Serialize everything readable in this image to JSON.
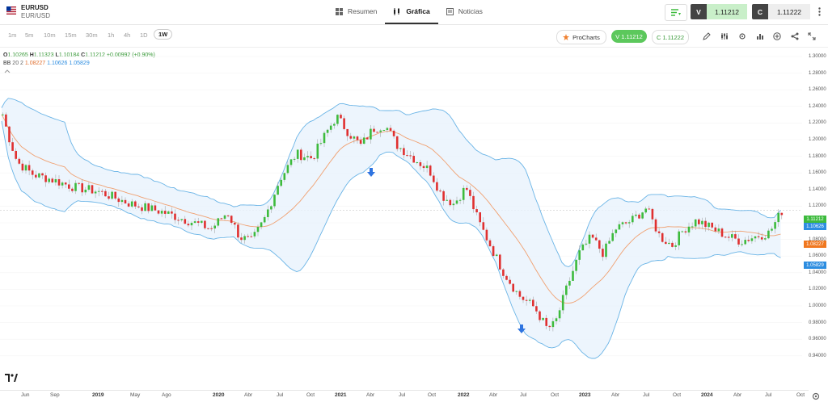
{
  "header": {
    "symbol": "EURUSD",
    "symbol_sub": "EUR/USD",
    "tabs": [
      {
        "label": "Resumen"
      },
      {
        "label": "Gráfica"
      },
      {
        "label": "Noticias"
      }
    ],
    "sell_label": "V",
    "sell_price": "1.11212",
    "buy_label": "C",
    "buy_price": "1.11222"
  },
  "timeframes": [
    "1m",
    "5m",
    "10m",
    "15m",
    "30m",
    "1h",
    "4h",
    "1D",
    "1W"
  ],
  "toolbar": {
    "prochart_label": "ProCharts",
    "sell_pill": "V 1.11212",
    "buy_pill": "C 1.11222"
  },
  "ohlc": {
    "o_label": "O",
    "o": "1.10265",
    "h_label": "H",
    "h": "1.11323",
    "l_label": "L",
    "l": "1.10184",
    "c_label": "C",
    "c": "1.11212",
    "change": "+0.00992 (+0.90%)"
  },
  "bb": {
    "label": "BB",
    "params": "20 2",
    "mid": "1.08227",
    "upper": "1.10626",
    "lower": "1.05829"
  },
  "y_axis": [
    "1.30000",
    "1.28000",
    "1.26000",
    "1.24000",
    "1.22000",
    "1.20000",
    "1.18000",
    "1.16000",
    "1.14000",
    "1.12000",
    "1.10000",
    "1.08000",
    "1.06000",
    "1.04000",
    "1.02000",
    "1.00000",
    "0.98000",
    "0.96000",
    "0.94000"
  ],
  "x_axis": [
    {
      "label": "Jun",
      "bold": false
    },
    {
      "label": "Sep",
      "bold": false
    },
    {
      "label": "2019",
      "bold": true
    },
    {
      "label": "May",
      "bold": false
    },
    {
      "label": "Ago",
      "bold": false
    },
    {
      "label": "2020",
      "bold": true
    },
    {
      "label": "Abr",
      "bold": false
    },
    {
      "label": "Jul",
      "bold": false
    },
    {
      "label": "Oct",
      "bold": false
    },
    {
      "label": "2021",
      "bold": true
    },
    {
      "label": "Abr",
      "bold": false
    },
    {
      "label": "Jul",
      "bold": false
    },
    {
      "label": "Oct",
      "bold": false
    },
    {
      "label": "2022",
      "bold": true
    },
    {
      "label": "Abr",
      "bold": false
    },
    {
      "label": "Jul",
      "bold": false
    },
    {
      "label": "Oct",
      "bold": false
    },
    {
      "label": "2023",
      "bold": true
    },
    {
      "label": "Abr",
      "bold": false
    },
    {
      "label": "Jul",
      "bold": false
    },
    {
      "label": "Oct",
      "bold": false
    },
    {
      "label": "2024",
      "bold": true
    },
    {
      "label": "Abr",
      "bold": false
    },
    {
      "label": "Jul",
      "bold": false
    },
    {
      "label": "Oct",
      "bold": false
    }
  ],
  "price_tags": {
    "price": "1.11212",
    "upper": "1.10626",
    "mid": "1.08227",
    "lower": "1.05829"
  },
  "colors": {
    "up": "#3dbb3d",
    "down": "#e03030",
    "band": "#6ab4e6",
    "mid": "#f0a070",
    "sell": "#8fd88f",
    "accent": "#2d8de0"
  },
  "chart_data": {
    "type": "candlestick",
    "instrument": "EURUSD",
    "timeframe": "1W",
    "ylim": [
      0.94,
      1.3
    ],
    "close_path_approx": [
      [
        0,
        1.235
      ],
      [
        8,
        1.205
      ],
      [
        20,
        1.17
      ],
      [
        40,
        1.155
      ],
      [
        60,
        1.15
      ],
      [
        90,
        1.14
      ],
      [
        120,
        1.135
      ],
      [
        160,
        1.12
      ],
      [
        200,
        1.11
      ],
      [
        230,
        1.1
      ],
      [
        260,
        1.09
      ],
      [
        280,
        1.11
      ],
      [
        295,
        1.08
      ],
      [
        310,
        1.075
      ],
      [
        325,
        1.1
      ],
      [
        345,
        1.15
      ],
      [
        365,
        1.18
      ],
      [
        385,
        1.175
      ],
      [
        405,
        1.21
      ],
      [
        415,
        1.225
      ],
      [
        430,
        1.205
      ],
      [
        445,
        1.19
      ],
      [
        460,
        1.21
      ],
      [
        475,
        1.215
      ],
      [
        490,
        1.19
      ],
      [
        510,
        1.175
      ],
      [
        530,
        1.16
      ],
      [
        545,
        1.13
      ],
      [
        560,
        1.12
      ],
      [
        575,
        1.14
      ],
      [
        590,
        1.1
      ],
      [
        605,
        1.07
      ],
      [
        620,
        1.04
      ],
      [
        640,
        1.01
      ],
      [
        660,
        0.995
      ],
      [
        675,
        0.97
      ],
      [
        685,
        0.975
      ],
      [
        700,
        1.02
      ],
      [
        715,
        1.06
      ],
      [
        730,
        1.08
      ],
      [
        745,
        1.06
      ],
      [
        760,
        1.09
      ],
      [
        780,
        1.1
      ],
      [
        798,
        1.115
      ],
      [
        815,
        1.08
      ],
      [
        830,
        1.07
      ],
      [
        845,
        1.09
      ],
      [
        860,
        1.1
      ],
      [
        880,
        1.09
      ],
      [
        900,
        1.08
      ],
      [
        915,
        1.075
      ],
      [
        930,
        1.08
      ],
      [
        950,
        1.085
      ],
      [
        966,
        1.112
      ]
    ],
    "bollinger": {
      "period": 20,
      "stddev": 2,
      "mid": 1.08227,
      "upper": 1.10626,
      "lower": 1.05829
    },
    "last_price": 1.11212,
    "markers": [
      {
        "type": "arrow-down",
        "x_label": "2021"
      },
      {
        "type": "arrow-down",
        "x_label": "Jul 2022"
      }
    ]
  }
}
